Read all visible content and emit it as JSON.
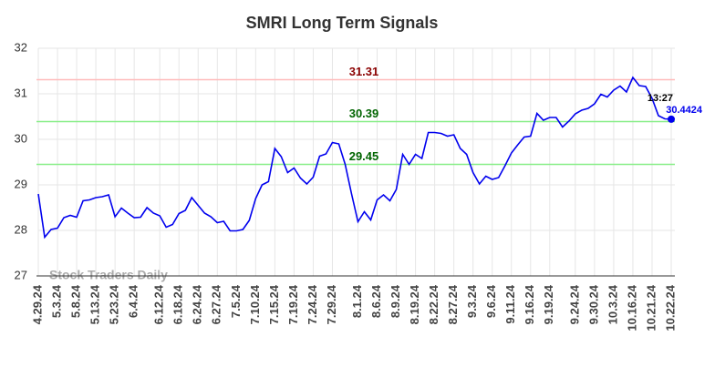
{
  "chart_data": {
    "type": "line",
    "title": "SMRI Long Term Signals",
    "categories": [
      "4.29.24",
      null,
      null,
      "5.3.24",
      null,
      null,
      "5.8.24",
      null,
      null,
      "5.13.24",
      null,
      null,
      "5.23.24",
      null,
      null,
      "6.4.24",
      null,
      null,
      null,
      "6.12.24",
      null,
      null,
      "6.18.24",
      null,
      null,
      "6.24.24",
      null,
      null,
      "6.27.24",
      null,
      null,
      "7.5.24",
      null,
      null,
      "7.10.24",
      null,
      null,
      "7.15.24",
      null,
      null,
      "7.19.24",
      null,
      null,
      "7.24.24",
      null,
      null,
      "7.29.24",
      null,
      null,
      null,
      "8.1.24",
      null,
      null,
      "8.6.24",
      null,
      null,
      "8.9.24",
      null,
      null,
      "8.19.24",
      null,
      null,
      "8.22.24",
      null,
      null,
      "8.27.24",
      null,
      null,
      "9.3.24",
      null,
      null,
      "9.6.24",
      null,
      null,
      "9.11.24",
      null,
      null,
      "9.16.24",
      null,
      null,
      "9.19.24",
      null,
      null,
      null,
      "9.24.24",
      null,
      null,
      "9.30.24",
      null,
      null,
      "10.3.24",
      null,
      null,
      "10.16.24",
      null,
      null,
      "10.21.24",
      null,
      null,
      "10.22.24"
    ],
    "values": [
      28.8,
      27.85,
      28.02,
      28.05,
      28.28,
      28.33,
      28.29,
      28.65,
      28.67,
      28.72,
      28.74,
      28.78,
      28.3,
      28.49,
      28.38,
      28.28,
      28.29,
      28.5,
      28.38,
      28.32,
      28.07,
      28.13,
      28.37,
      28.44,
      28.72,
      28.55,
      28.38,
      28.3,
      28.17,
      28.2,
      27.99,
      27.99,
      28.02,
      28.22,
      28.7,
      29.0,
      29.07,
      29.8,
      29.62,
      29.27,
      29.37,
      29.15,
      29.02,
      29.17,
      29.63,
      29.68,
      29.93,
      29.9,
      29.45,
      28.8,
      28.19,
      28.41,
      28.23,
      28.67,
      28.78,
      28.65,
      28.9,
      29.67,
      29.45,
      29.67,
      29.58,
      30.15,
      30.15,
      30.13,
      30.07,
      30.1,
      29.8,
      29.67,
      29.27,
      29.02,
      29.19,
      29.12,
      29.16,
      29.42,
      29.7,
      29.88,
      30.05,
      30.07,
      30.57,
      30.42,
      30.48,
      30.48,
      30.27,
      30.4,
      30.56,
      30.64,
      30.68,
      30.78,
      30.99,
      30.93,
      31.08,
      31.17,
      31.04,
      31.36,
      31.18,
      31.16,
      30.9,
      30.52,
      30.45,
      30.4424
    ],
    "color": "#0000ee",
    "ylim": [
      27,
      32
    ],
    "yticks": [
      27,
      28,
      29,
      30,
      31,
      32
    ],
    "grid": true,
    "hlines": [
      {
        "value": 31.31,
        "color": "#ffbbbb",
        "label_color": "#8b0000"
      },
      {
        "value": 30.39,
        "color": "#88ee88",
        "label_color": "#006400"
      },
      {
        "value": 29.45,
        "color": "#88ee88",
        "label_color": "#006400"
      }
    ],
    "last_time": "13:27",
    "watermark": "Stock Traders Daily"
  }
}
